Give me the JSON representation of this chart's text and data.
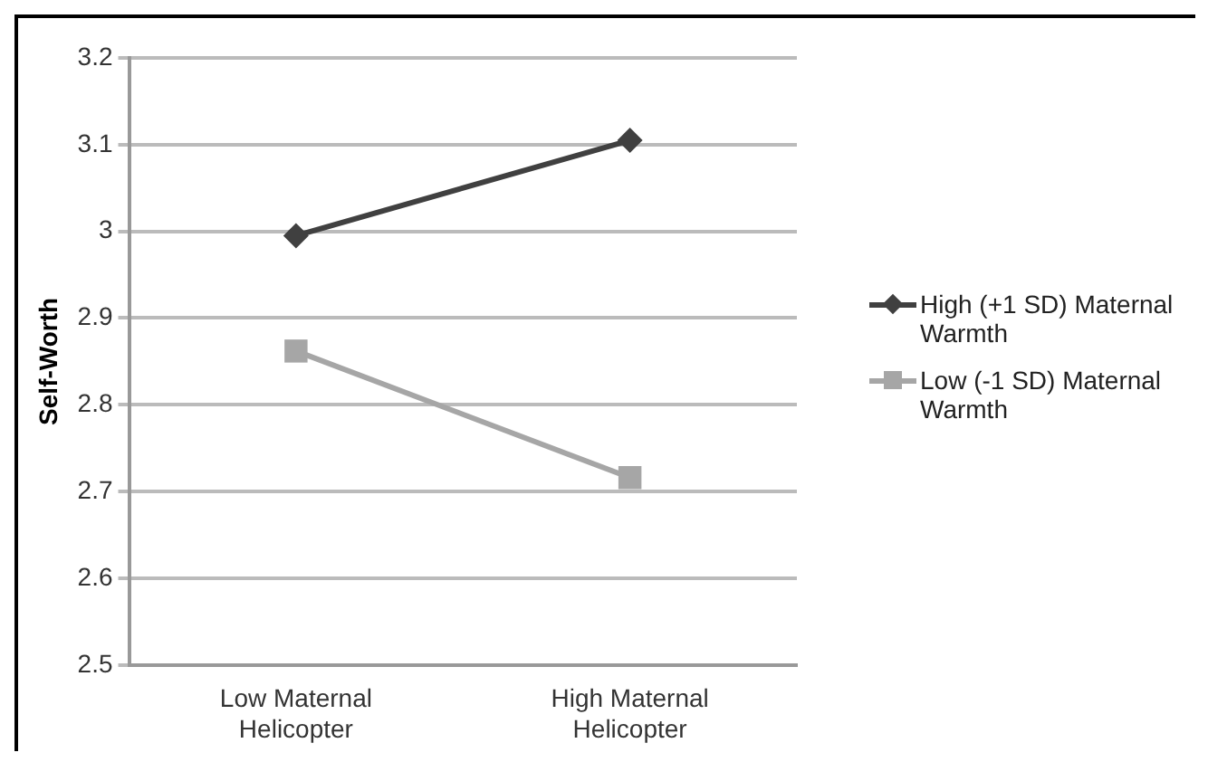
{
  "chart_data": {
    "type": "line",
    "ylabel": "Self-Worth",
    "categories": [
      "Low Maternal Helicopter",
      "High Maternal Helicopter"
    ],
    "series": [
      {
        "name": "High (+1 SD) Maternal Warmth",
        "color": "#404040",
        "values": [
          2.995,
          3.105
        ],
        "marker": "diamond"
      },
      {
        "name": "Low (-1 SD) Maternal Warmth",
        "color": "#a6a6a6",
        "values": [
          2.862,
          2.716
        ],
        "marker": "square"
      }
    ],
    "ylim": [
      2.5,
      3.2
    ],
    "yticks": [
      {
        "value": 2.5,
        "label": "2.5"
      },
      {
        "value": 2.6,
        "label": "2.6"
      },
      {
        "value": 2.7,
        "label": "2.7"
      },
      {
        "value": 2.8,
        "label": "2.8"
      },
      {
        "value": 2.9,
        "label": "2.9"
      },
      {
        "value": 3,
        "label": "3"
      },
      {
        "value": 3.1,
        "label": "3.1"
      },
      {
        "value": 3.2,
        "label": "3.2"
      }
    ],
    "grid": "y",
    "legend": "right",
    "line_style": "solid"
  }
}
